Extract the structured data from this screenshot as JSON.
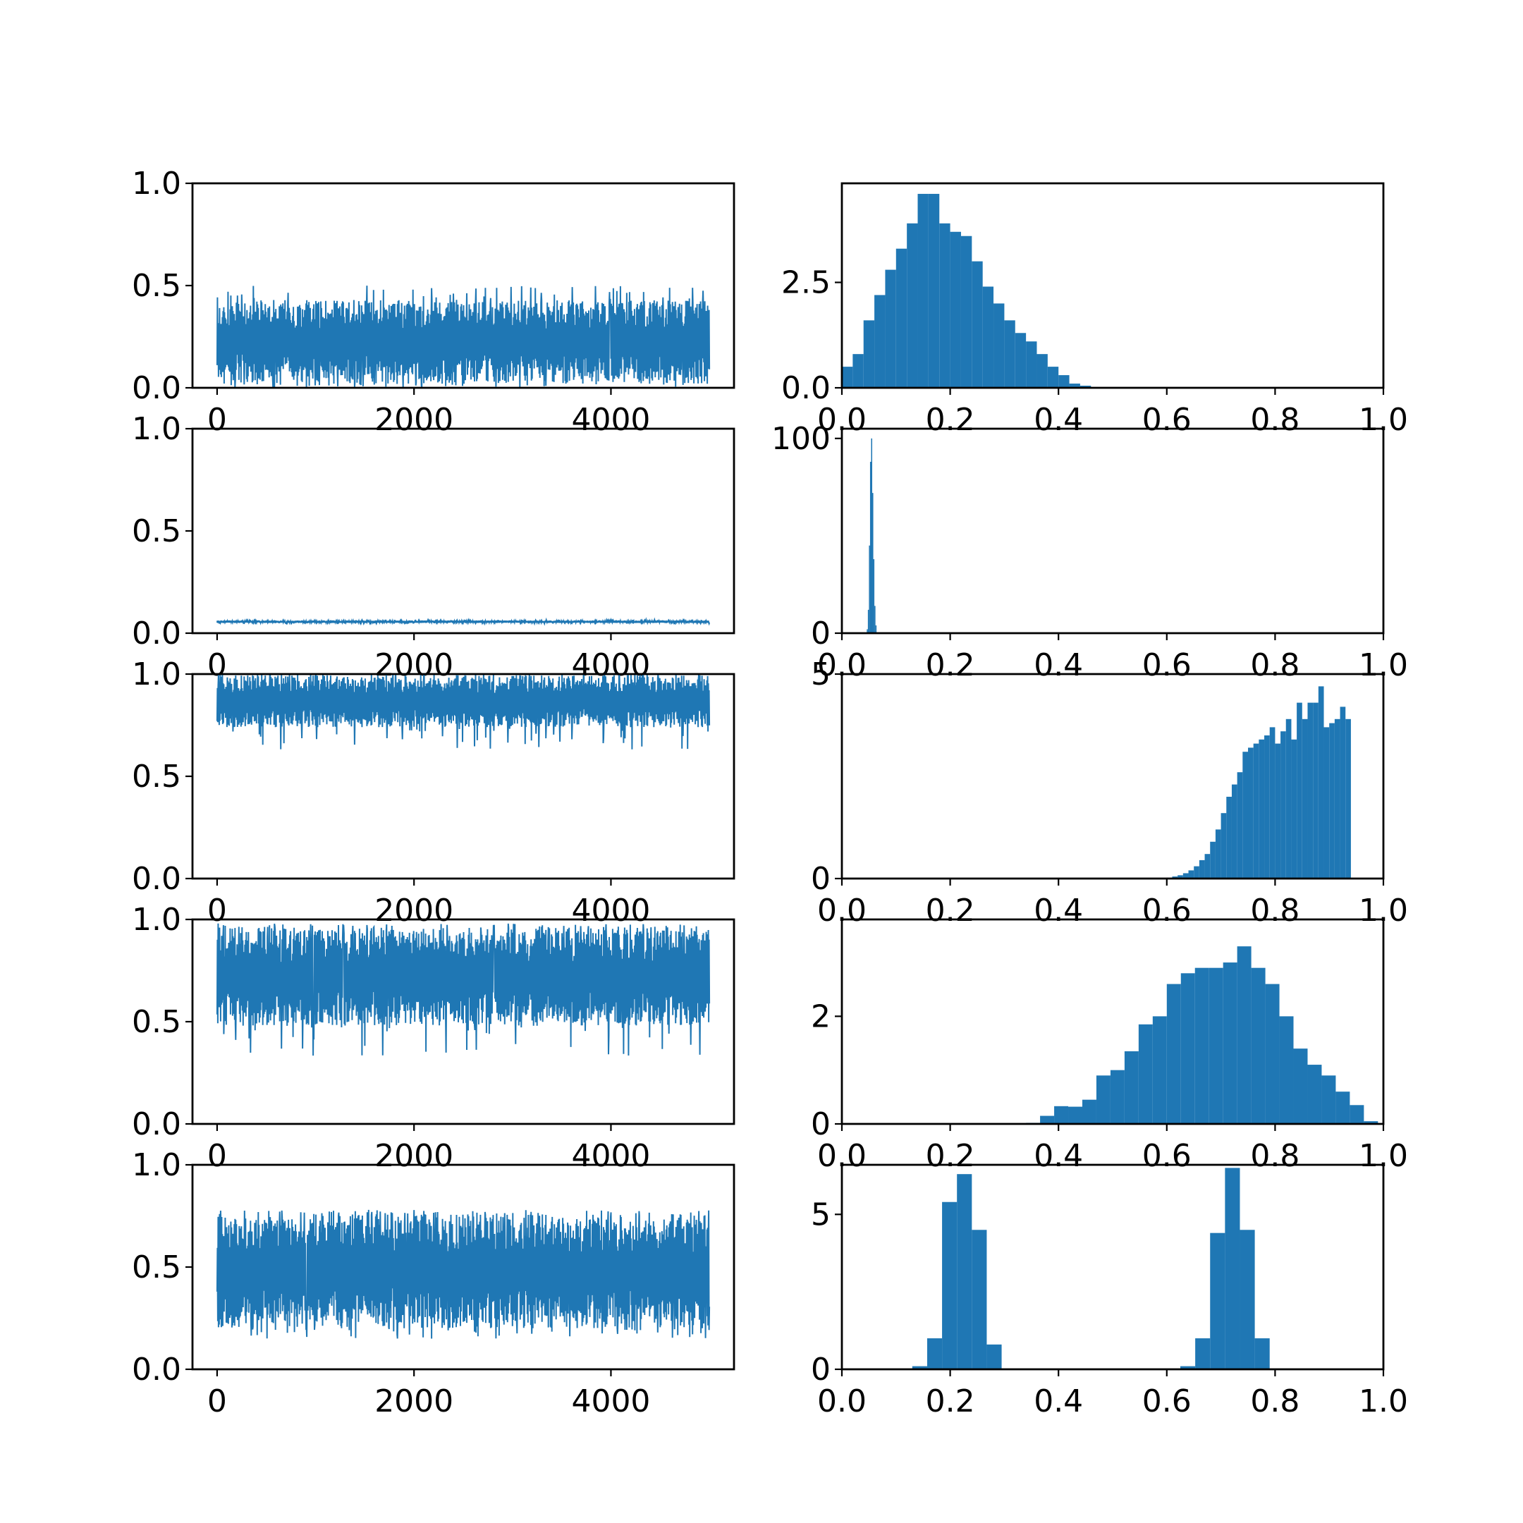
{
  "figure": {
    "background": "#ffffff",
    "series_color": "#1f77b4",
    "axis_color": "#000000"
  },
  "chart_data": [
    {
      "id": "trace-1",
      "type": "line",
      "x_range": [
        0,
        5000
      ],
      "xlim": [
        -250,
        5250
      ],
      "ylim": [
        0,
        1
      ],
      "x_ticks": [
        0,
        2000,
        4000
      ],
      "x_tick_labels": [
        "0",
        "2000",
        "4000"
      ],
      "y_ticks": [
        0.0,
        0.5,
        1.0
      ],
      "y_tick_labels": [
        "0.0",
        "0.5",
        "1.0"
      ],
      "band": {
        "low": 0.02,
        "high": 0.43,
        "center": 0.2,
        "extreme_low": 0.0,
        "extreme_high": 0.5
      },
      "grid": false,
      "legend": "none"
    },
    {
      "id": "hist-1",
      "type": "bar",
      "bin_start": 0.0,
      "bin_width": 0.02,
      "values": [
        0.5,
        0.8,
        1.6,
        2.2,
        2.8,
        3.3,
        3.9,
        4.6,
        4.6,
        3.9,
        3.7,
        3.6,
        3.0,
        2.4,
        2.0,
        1.6,
        1.3,
        1.1,
        0.8,
        0.5,
        0.3,
        0.1,
        0.05
      ],
      "xlim": [
        0,
        1
      ],
      "ylim": [
        0,
        4.85
      ],
      "x_ticks": [
        0.0,
        0.2,
        0.4,
        0.6,
        0.8,
        1.0
      ],
      "x_tick_labels": [
        "0.0",
        "0.2",
        "0.4",
        "0.6",
        "0.8",
        "1.0"
      ],
      "y_ticks": [
        0.0,
        2.5
      ],
      "y_tick_labels": [
        "0.0",
        "2.5"
      ],
      "grid": false,
      "legend": "none"
    },
    {
      "id": "trace-2",
      "type": "line",
      "x_range": [
        0,
        5000
      ],
      "xlim": [
        -250,
        5250
      ],
      "ylim": [
        0,
        1
      ],
      "x_ticks": [
        0,
        2000,
        4000
      ],
      "x_tick_labels": [
        "0",
        "2000",
        "4000"
      ],
      "y_ticks": [
        0.0,
        0.5,
        1.0
      ],
      "y_tick_labels": [
        "0.0",
        "0.5",
        "1.0"
      ],
      "band": {
        "low": 0.05,
        "high": 0.062,
        "center": 0.056,
        "extreme_low": 0.047,
        "extreme_high": 0.066
      },
      "grid": false,
      "legend": "none"
    },
    {
      "id": "hist-2",
      "type": "bar",
      "bin_start": 0.046,
      "bin_width": 0.002,
      "values": [
        2,
        12,
        45,
        88,
        100,
        72,
        38,
        14,
        4
      ],
      "xlim": [
        0,
        1
      ],
      "ylim": [
        0,
        105
      ],
      "x_ticks": [
        0.0,
        0.2,
        0.4,
        0.6,
        0.8,
        1.0
      ],
      "x_tick_labels": [
        "0.0",
        "0.2",
        "0.4",
        "0.6",
        "0.8",
        "1.0"
      ],
      "y_ticks": [
        0,
        100
      ],
      "y_tick_labels": [
        "0",
        "100"
      ],
      "grid": false,
      "legend": "none"
    },
    {
      "id": "trace-3",
      "type": "line",
      "x_range": [
        0,
        5000
      ],
      "xlim": [
        -250,
        5250
      ],
      "ylim": [
        0,
        1
      ],
      "x_ticks": [
        0,
        2000,
        4000
      ],
      "x_tick_labels": [
        "0",
        "2000",
        "4000"
      ],
      "y_ticks": [
        0.0,
        0.5,
        1.0
      ],
      "y_tick_labels": [
        "0.0",
        "0.5",
        "1.0"
      ],
      "band": {
        "low": 0.74,
        "high": 0.995,
        "center": 0.88,
        "extreme_low": 0.63,
        "extreme_high": 1.0
      },
      "grid": false,
      "legend": "none"
    },
    {
      "id": "hist-3",
      "type": "bar",
      "bin_start": 0.6,
      "bin_width": 0.01,
      "values": [
        0.02,
        0.05,
        0.08,
        0.13,
        0.2,
        0.3,
        0.45,
        0.6,
        0.9,
        1.2,
        1.6,
        2.0,
        2.3,
        2.6,
        3.1,
        3.2,
        3.3,
        3.4,
        3.5,
        3.7,
        3.3,
        3.6,
        3.9,
        3.4,
        4.3,
        3.9,
        4.3,
        4.3,
        4.7,
        3.7,
        3.8,
        3.9,
        4.2,
        3.9
      ],
      "xlim": [
        0,
        1
      ],
      "ylim": [
        0,
        5.0
      ],
      "x_ticks": [
        0.0,
        0.2,
        0.4,
        0.6,
        0.8,
        1.0
      ],
      "x_tick_labels": [
        "0.0",
        "0.2",
        "0.4",
        "0.6",
        "0.8",
        "1.0"
      ],
      "y_ticks": [
        0,
        5
      ],
      "y_tick_labels": [
        "0",
        "5"
      ],
      "grid": false,
      "legend": "none"
    },
    {
      "id": "trace-4",
      "type": "line",
      "x_range": [
        0,
        5000
      ],
      "xlim": [
        -250,
        5250
      ],
      "ylim": [
        0,
        1
      ],
      "x_ticks": [
        0,
        2000,
        4000
      ],
      "x_tick_labels": [
        "0",
        "2000",
        "4000"
      ],
      "y_ticks": [
        0.0,
        0.5,
        1.0
      ],
      "y_tick_labels": [
        "0.0",
        "0.5",
        "1.0"
      ],
      "band": {
        "low": 0.48,
        "high": 0.96,
        "center": 0.7,
        "extreme_low": 0.33,
        "extreme_high": 0.98
      },
      "grid": false,
      "legend": "none"
    },
    {
      "id": "hist-4",
      "type": "bar",
      "bin_start": 0.34,
      "bin_width": 0.026,
      "values": [
        0.02,
        0.15,
        0.33,
        0.32,
        0.45,
        0.9,
        1.0,
        1.35,
        1.85,
        2.0,
        2.6,
        2.8,
        2.9,
        2.9,
        3.0,
        3.3,
        2.9,
        2.6,
        2.0,
        1.4,
        1.1,
        0.9,
        0.6,
        0.35,
        0.05
      ],
      "xlim": [
        0,
        1
      ],
      "ylim": [
        0,
        3.8
      ],
      "x_ticks": [
        0.0,
        0.2,
        0.4,
        0.6,
        0.8,
        1.0
      ],
      "x_tick_labels": [
        "0.0",
        "0.2",
        "0.4",
        "0.6",
        "0.8",
        "1.0"
      ],
      "y_ticks": [
        0,
        2
      ],
      "y_tick_labels": [
        "0",
        "2"
      ],
      "grid": false,
      "legend": "none"
    },
    {
      "id": "trace-5",
      "type": "line",
      "x_range": [
        0,
        5000
      ],
      "xlim": [
        -250,
        5250
      ],
      "ylim": [
        0,
        1
      ],
      "x_ticks": [
        0,
        2000,
        4000
      ],
      "x_tick_labels": [
        "0",
        "2000",
        "4000"
      ],
      "y_ticks": [
        0.0,
        0.5,
        1.0
      ],
      "y_tick_labels": [
        "0.0",
        "0.5",
        "1.0"
      ],
      "band": {
        "low": 0.2,
        "high": 0.76,
        "center": 0.47,
        "extreme_low": 0.15,
        "extreme_high": 0.78
      },
      "grid": false,
      "legend": "none"
    },
    {
      "id": "hist-5",
      "type": "bar",
      "bin_start": 0.13,
      "bin_width": 0.0275,
      "values": [
        0.1,
        1.0,
        5.4,
        6.3,
        4.5,
        0.8,
        0,
        0,
        0,
        0,
        0,
        0,
        0,
        0,
        0,
        0,
        0,
        0,
        0.1,
        1.0,
        4.4,
        6.5,
        4.5,
        1.0
      ],
      "xlim": [
        0,
        1
      ],
      "ylim": [
        0,
        6.6
      ],
      "x_ticks": [
        0.0,
        0.2,
        0.4,
        0.6,
        0.8,
        1.0
      ],
      "x_tick_labels": [
        "0.0",
        "0.2",
        "0.4",
        "0.6",
        "0.8",
        "1.0"
      ],
      "y_ticks": [
        0,
        5
      ],
      "y_tick_labels": [
        "0",
        "5"
      ],
      "grid": false,
      "legend": "none"
    }
  ]
}
